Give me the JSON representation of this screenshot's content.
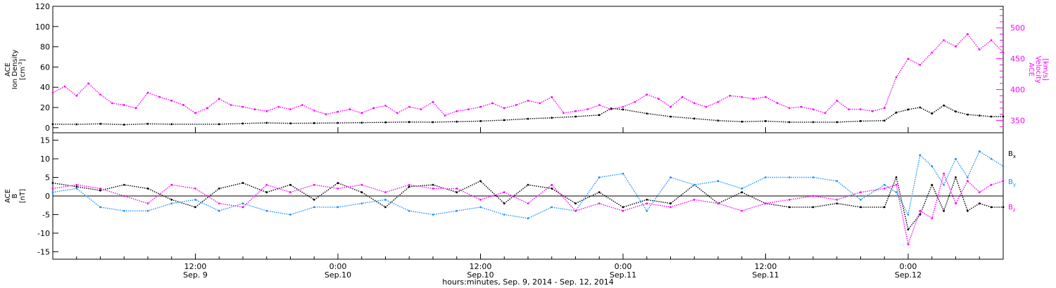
{
  "figure": {
    "xlabel": "hours:minutes, Sep.  9, 2014 - Sep. 12, 2014",
    "x_start_hours": 0,
    "x_end_hours": 80,
    "x_ticks": [
      {
        "hours": 12,
        "time": "12:00",
        "date": "Sep. 9"
      },
      {
        "hours": 24,
        "time": "0:00",
        "date": "Sep.10"
      },
      {
        "hours": 36,
        "time": "12:00",
        "date": "Sep.10"
      },
      {
        "hours": 48,
        "time": "0:00",
        "date": "Sep.11"
      },
      {
        "hours": 60,
        "time": "12:00",
        "date": "Sep.11"
      },
      {
        "hours": 72,
        "time": "0:00",
        "date": "Sep.12"
      }
    ]
  },
  "chart_data": [
    {
      "type": "scatter",
      "panel": "top",
      "ylabel": {
        "line1": "ACE",
        "line2": "Ion Density",
        "unit": "[cm",
        "unit_sup": "-3",
        "unit_end": "]"
      },
      "ylim": [
        -5,
        120
      ],
      "yticks": [
        0,
        20,
        40,
        60,
        80,
        100,
        120
      ],
      "y2label": {
        "line1": "ACE",
        "line2": "Velocity",
        "unit": "[km/s]"
      },
      "y2lim": [
        330,
        535
      ],
      "y2ticks": [
        350,
        400,
        450,
        500
      ],
      "series": [
        {
          "axis": "left",
          "color": "#000000",
          "points": [
            [
              0,
              3.5
            ],
            [
              2,
              3.3
            ],
            [
              4,
              3.8
            ],
            [
              6,
              3.0
            ],
            [
              8,
              3.8
            ],
            [
              10,
              3.5
            ],
            [
              14,
              3.5
            ],
            [
              16,
              4.2
            ],
            [
              18,
              4.8
            ],
            [
              20,
              4.3
            ],
            [
              22,
              4.5
            ],
            [
              24,
              4.7
            ],
            [
              26,
              5.0
            ],
            [
              28,
              5.3
            ],
            [
              30,
              5.6
            ],
            [
              32,
              5.5
            ],
            [
              34,
              6.0
            ],
            [
              36,
              6.5
            ],
            [
              38,
              7.5
            ],
            [
              40,
              8.8
            ],
            [
              42,
              9.8
            ],
            [
              44,
              11.0
            ],
            [
              46,
              12.5
            ],
            [
              47,
              19
            ],
            [
              48,
              18
            ],
            [
              50,
              14
            ],
            [
              52,
              11
            ],
            [
              54,
              9
            ],
            [
              56,
              7
            ],
            [
              58,
              6
            ],
            [
              60,
              6.5
            ],
            [
              62,
              5.5
            ],
            [
              64,
              5.5
            ],
            [
              66,
              5.5
            ],
            [
              68,
              6.5
            ],
            [
              70,
              7.0
            ],
            [
              71,
              15
            ],
            [
              72,
              18
            ],
            [
              73,
              20
            ],
            [
              74,
              14
            ],
            [
              75,
              22
            ],
            [
              76,
              16
            ],
            [
              77,
              13
            ],
            [
              78,
              12
            ],
            [
              79,
              11
            ],
            [
              80,
              11
            ]
          ]
        },
        {
          "axis": "right",
          "color": "#ff00ff",
          "points": [
            [
              0,
              395
            ],
            [
              1,
              405
            ],
            [
              2,
              390
            ],
            [
              3,
              410
            ],
            [
              4,
              392
            ],
            [
              5,
              378
            ],
            [
              6,
              375
            ],
            [
              7,
              370
            ],
            [
              8,
              395
            ],
            [
              9,
              388
            ],
            [
              10,
              382
            ],
            [
              11,
              375
            ],
            [
              12,
              362
            ],
            [
              13,
              370
            ],
            [
              14,
              385
            ],
            [
              15,
              375
            ],
            [
              16,
              372
            ],
            [
              17,
              368
            ],
            [
              18,
              365
            ],
            [
              19,
              372
            ],
            [
              20,
              368
            ],
            [
              21,
              375
            ],
            [
              22,
              366
            ],
            [
              23,
              360
            ],
            [
              24,
              364
            ],
            [
              25,
              368
            ],
            [
              26,
              362
            ],
            [
              27,
              370
            ],
            [
              28,
              374
            ],
            [
              29,
              362
            ],
            [
              30,
              372
            ],
            [
              31,
              368
            ],
            [
              32,
              380
            ],
            [
              33,
              358
            ],
            [
              34,
              365
            ],
            [
              35,
              368
            ],
            [
              36,
              372
            ],
            [
              37,
              378
            ],
            [
              38,
              370
            ],
            [
              39,
              375
            ],
            [
              40,
              382
            ],
            [
              41,
              378
            ],
            [
              42,
              388
            ],
            [
              43,
              362
            ],
            [
              44,
              365
            ],
            [
              45,
              368
            ],
            [
              46,
              375
            ],
            [
              47,
              368
            ],
            [
              48,
              372
            ],
            [
              49,
              380
            ],
            [
              50,
              392
            ],
            [
              51,
              385
            ],
            [
              52,
              372
            ],
            [
              53,
              388
            ],
            [
              54,
              378
            ],
            [
              55,
              372
            ],
            [
              56,
              380
            ],
            [
              57,
              390
            ],
            [
              58,
              388
            ],
            [
              59,
              385
            ],
            [
              60,
              388
            ],
            [
              61,
              378
            ],
            [
              62,
              370
            ],
            [
              63,
              372
            ],
            [
              64,
              368
            ],
            [
              65,
              362
            ],
            [
              66,
              382
            ],
            [
              67,
              368
            ],
            [
              68,
              368
            ],
            [
              69,
              365
            ],
            [
              70,
              370
            ],
            [
              71,
              420
            ],
            [
              72,
              450
            ],
            [
              73,
              440
            ],
            [
              74,
              460
            ],
            [
              75,
              480
            ],
            [
              76,
              470
            ],
            [
              77,
              490
            ],
            [
              78,
              465
            ],
            [
              79,
              480
            ],
            [
              80,
              460
            ]
          ]
        }
      ]
    },
    {
      "type": "scatter",
      "panel": "bottom",
      "ylabel": {
        "line1": "ACE",
        "line2": "B",
        "unit": "[nT]"
      },
      "ylim": [
        -17,
        17
      ],
      "yticks": [
        -15,
        -10,
        -5,
        0,
        5,
        10,
        15
      ],
      "zero_line": true,
      "legend": [
        {
          "label": "B",
          "sub": "x",
          "color": "#000000"
        },
        {
          "label": "B",
          "sub": "y",
          "color": "#1e90ff"
        },
        {
          "label": "B",
          "sub": "z",
          "color": "#ff00ff"
        }
      ],
      "series": [
        {
          "name": "Bx",
          "color": "#000000",
          "points": [
            [
              0,
              3.5
            ],
            [
              2,
              2.5
            ],
            [
              4,
              1.5
            ],
            [
              6,
              3
            ],
            [
              8,
              2
            ],
            [
              10,
              -1
            ],
            [
              12,
              -3
            ],
            [
              14,
              2
            ],
            [
              16,
              3.5
            ],
            [
              18,
              1
            ],
            [
              20,
              3
            ],
            [
              22,
              -1
            ],
            [
              24,
              3.5
            ],
            [
              26,
              1
            ],
            [
              28,
              -3
            ],
            [
              30,
              2.5
            ],
            [
              32,
              3
            ],
            [
              34,
              1
            ],
            [
              36,
              4
            ],
            [
              38,
              -2
            ],
            [
              40,
              3
            ],
            [
              42,
              2
            ],
            [
              44,
              -2
            ],
            [
              46,
              1
            ],
            [
              48,
              -3
            ],
            [
              50,
              -1
            ],
            [
              52,
              -2
            ],
            [
              54,
              3
            ],
            [
              56,
              -2
            ],
            [
              58,
              1
            ],
            [
              60,
              -2
            ],
            [
              62,
              -3
            ],
            [
              64,
              -3
            ],
            [
              66,
              -2
            ],
            [
              68,
              -3
            ],
            [
              70,
              -3
            ],
            [
              71,
              5
            ],
            [
              72,
              -9
            ],
            [
              73,
              -5
            ],
            [
              74,
              3
            ],
            [
              75,
              -4
            ],
            [
              76,
              5
            ],
            [
              77,
              -4
            ],
            [
              78,
              -2
            ],
            [
              79,
              -3
            ],
            [
              80,
              -3
            ]
          ]
        },
        {
          "name": "By",
          "color": "#1e90ff",
          "points": [
            [
              0,
              1
            ],
            [
              2,
              2
            ],
            [
              4,
              -3
            ],
            [
              6,
              -4
            ],
            [
              8,
              -4
            ],
            [
              10,
              -2
            ],
            [
              12,
              -1
            ],
            [
              14,
              -4
            ],
            [
              16,
              -2
            ],
            [
              18,
              -4
            ],
            [
              20,
              -5
            ],
            [
              22,
              -3
            ],
            [
              24,
              -3
            ],
            [
              26,
              -2
            ],
            [
              28,
              -1
            ],
            [
              30,
              -4
            ],
            [
              32,
              -5
            ],
            [
              34,
              -4
            ],
            [
              36,
              -3
            ],
            [
              38,
              -5
            ],
            [
              40,
              -6
            ],
            [
              42,
              -3
            ],
            [
              44,
              -4
            ],
            [
              46,
              5
            ],
            [
              48,
              6
            ],
            [
              50,
              -4
            ],
            [
              52,
              5
            ],
            [
              54,
              3
            ],
            [
              56,
              4
            ],
            [
              58,
              2
            ],
            [
              60,
              5
            ],
            [
              62,
              5
            ],
            [
              64,
              5
            ],
            [
              66,
              4
            ],
            [
              68,
              -1
            ],
            [
              70,
              3
            ],
            [
              71,
              1
            ],
            [
              72,
              -5
            ],
            [
              73,
              11
            ],
            [
              74,
              8
            ],
            [
              75,
              3
            ],
            [
              76,
              10
            ],
            [
              77,
              5
            ],
            [
              78,
              12
            ],
            [
              79,
              10
            ],
            [
              80,
              8
            ]
          ]
        },
        {
          "name": "Bz",
          "color": "#ff00ff",
          "points": [
            [
              0,
              2
            ],
            [
              2,
              3
            ],
            [
              4,
              2
            ],
            [
              6,
              0
            ],
            [
              8,
              -2
            ],
            [
              10,
              3
            ],
            [
              12,
              2
            ],
            [
              14,
              -2
            ],
            [
              16,
              -3
            ],
            [
              18,
              3
            ],
            [
              20,
              1
            ],
            [
              22,
              3
            ],
            [
              24,
              2
            ],
            [
              26,
              3
            ],
            [
              28,
              1
            ],
            [
              30,
              3
            ],
            [
              32,
              2
            ],
            [
              34,
              2
            ],
            [
              36,
              -1
            ],
            [
              38,
              1
            ],
            [
              40,
              -2
            ],
            [
              42,
              3
            ],
            [
              44,
              -4
            ],
            [
              46,
              -2
            ],
            [
              48,
              -4
            ],
            [
              50,
              -2
            ],
            [
              52,
              -3
            ],
            [
              54,
              -1
            ],
            [
              56,
              -2
            ],
            [
              58,
              -4
            ],
            [
              60,
              -2
            ],
            [
              62,
              -1
            ],
            [
              64,
              0
            ],
            [
              66,
              -1
            ],
            [
              68,
              1
            ],
            [
              70,
              2
            ],
            [
              71,
              3
            ],
            [
              72,
              -13
            ],
            [
              73,
              -4
            ],
            [
              74,
              -6
            ],
            [
              75,
              6
            ],
            [
              76,
              -2
            ],
            [
              77,
              4
            ],
            [
              78,
              1
            ],
            [
              79,
              3
            ],
            [
              80,
              4
            ]
          ]
        }
      ]
    }
  ]
}
